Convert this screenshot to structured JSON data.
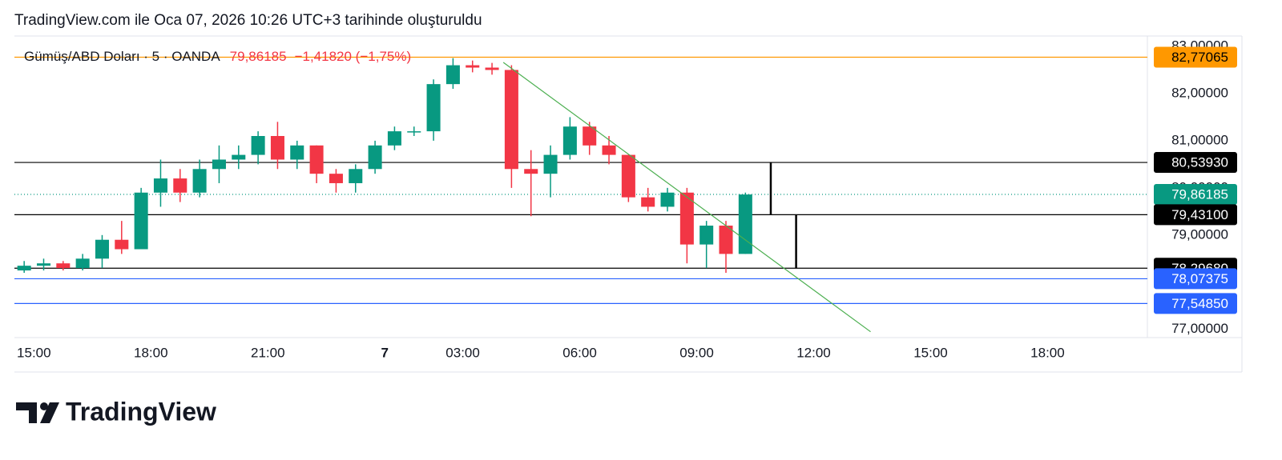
{
  "chart_data": {
    "type": "candlestick",
    "title": "TradingView.com ile Oca 07, 2026 10:26 UTC+3 tarihinde oluşturuldu",
    "legend": {
      "symbol": "Gümüş/ABD Doları · 5 · OANDA",
      "change": "−1,41820 (−1,75%)"
    },
    "x": [
      -0.5,
      0,
      0.5,
      1,
      1.5,
      2,
      2.5,
      3,
      3.5,
      4,
      4.5,
      5,
      5.5,
      6,
      6.5,
      7,
      7.5,
      8,
      8.5,
      9,
      9.5,
      10,
      10.5,
      11,
      11.5,
      12,
      12.5,
      13,
      13.5,
      14,
      14.5,
      15,
      15.5,
      16,
      16.5,
      17,
      17.5,
      18
    ],
    "open": [
      78.25,
      78.35,
      78.4,
      78.3,
      78.5,
      78.9,
      78.7,
      79.9,
      80.2,
      79.9,
      80.4,
      80.6,
      80.7,
      81.1,
      80.6,
      80.9,
      80.3,
      80.1,
      80.4,
      80.9,
      81.2,
      81.2,
      82.2,
      82.6,
      82.55,
      82.5,
      80.4,
      80.3,
      80.7,
      81.3,
      80.9,
      80.7,
      79.8,
      79.6,
      79.9,
      78.8,
      79.2,
      78.6
    ],
    "high": [
      78.45,
      78.5,
      78.45,
      78.6,
      79.0,
      79.3,
      80.0,
      80.6,
      80.4,
      80.6,
      80.9,
      80.9,
      81.2,
      81.4,
      81.0,
      80.9,
      80.4,
      80.5,
      81.0,
      81.3,
      81.3,
      82.3,
      82.75,
      82.7,
      82.65,
      82.6,
      80.8,
      80.9,
      81.5,
      81.4,
      81.1,
      80.7,
      80.0,
      80.0,
      80.0,
      79.3,
      79.3,
      79.9
    ],
    "low": [
      78.2,
      78.25,
      78.25,
      78.25,
      78.3,
      78.6,
      78.7,
      79.6,
      79.7,
      79.8,
      80.1,
      80.4,
      80.5,
      80.4,
      80.4,
      80.1,
      79.9,
      79.9,
      80.3,
      80.8,
      81.1,
      81.0,
      82.1,
      82.45,
      82.4,
      80.0,
      79.4,
      79.8,
      80.6,
      80.7,
      80.5,
      79.7,
      79.5,
      79.5,
      78.4,
      78.3,
      78.2,
      78.6
    ],
    "close": [
      78.35,
      78.4,
      78.3,
      78.5,
      78.9,
      78.7,
      79.9,
      80.2,
      79.9,
      80.4,
      80.6,
      80.7,
      81.1,
      80.6,
      80.9,
      80.3,
      80.1,
      80.4,
      80.9,
      81.2,
      81.2,
      82.2,
      82.6,
      82.55,
      82.5,
      80.4,
      80.3,
      80.7,
      81.3,
      80.9,
      80.7,
      79.8,
      79.6,
      79.9,
      78.8,
      79.2,
      78.6,
      79.86
    ],
    "up_color": "#089981",
    "down_color": "#f23645",
    "xlim": [
      -0.5,
      28.56
    ],
    "xticks": [
      {
        "value": 0,
        "label": "15:00"
      },
      {
        "value": 3,
        "label": "18:00"
      },
      {
        "value": 6,
        "label": "21:00"
      },
      {
        "value": 9,
        "label": "7"
      },
      {
        "value": 11,
        "label": "03:00"
      },
      {
        "value": 14,
        "label": "06:00"
      },
      {
        "value": 17,
        "label": "09:00"
      },
      {
        "value": 20,
        "label": "12:00"
      },
      {
        "value": 23,
        "label": "15:00"
      },
      {
        "value": 26,
        "label": "18:00"
      }
    ],
    "ylim": [
      76.86,
      83.22
    ],
    "yticks": [
      {
        "value": 77,
        "label": "77,00000"
      },
      {
        "value": 78,
        "label": "78,00000"
      },
      {
        "value": 79,
        "label": "79,00000"
      },
      {
        "value": 80,
        "label": "80,00000"
      },
      {
        "value": 81,
        "label": "81,00000"
      },
      {
        "value": 82,
        "label": "82,00000"
      },
      {
        "value": 83,
        "label": "83,00000"
      }
    ],
    "price_lines": [
      {
        "value": 82.77065,
        "label": "82,77065",
        "color": "#ff9800"
      },
      {
        "value": 80.5393,
        "label": "80,53930",
        "color": "#000000"
      },
      {
        "value": 79.86185,
        "label": "79,86185",
        "color": "#089981",
        "dotted": true
      },
      {
        "value": 79.431,
        "label": "79,43100",
        "color": "#000000"
      },
      {
        "value": 78.2968,
        "label": "78,29680",
        "color": "#000000"
      },
      {
        "value": 78.07375,
        "label": "78,07375",
        "color": "#2962ff"
      },
      {
        "value": 77.5485,
        "label": "77,54850",
        "color": "#2962ff"
      }
    ],
    "trend_line": {
      "x": [
        12.04,
        21.46
      ],
      "y": [
        82.66,
        76.95
      ],
      "color": "#4caf50"
    },
    "measure_lines": [
      {
        "x": 18.9,
        "y": [
          80.5393,
          79.431
        ]
      },
      {
        "x": 19.55,
        "y": [
          79.431,
          78.2968
        ]
      }
    ]
  },
  "brand": "TradingView"
}
